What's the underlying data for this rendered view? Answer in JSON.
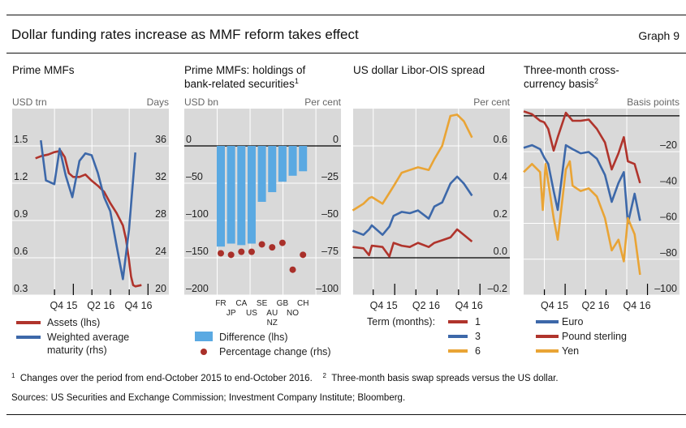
{
  "header": {
    "title": "Dollar funding rates increase as MMF reform takes effect",
    "graph_number": "Graph 9"
  },
  "footnotes": {
    "note1_mark": "1",
    "note1": "Changes over the period from end-October 2015 to end-October 2016.",
    "note2_mark": "2",
    "note2": "Three-month basis swap spreads versus the US dollar.",
    "sources": "Sources: US Securities and Exchange Commission; Investment Company Institute; Bloomberg."
  },
  "colors": {
    "red": "#b0342c",
    "blue": "#3d68a9",
    "yellow": "#e9a435",
    "bar": "#5aa9e2",
    "plot_bg": "#d9d9d9"
  },
  "chart_data": [
    {
      "type": "line",
      "title": "Prime MMFs",
      "ylabel_left": "USD trn",
      "ylabel_right": "Days",
      "xlim": [
        "2015-03-08",
        "2017-04-13"
      ],
      "ylim_left": [
        0.3,
        1.8
      ],
      "ylim_right": [
        20,
        40
      ],
      "yticks_left": [
        0.3,
        0.6,
        0.9,
        1.2,
        1.5
      ],
      "yticks_right": [
        20,
        24,
        28,
        32,
        36
      ],
      "yticks_left_labels": [
        "0.3",
        "0.6",
        "0.9",
        "1.2",
        "1.5"
      ],
      "yticks_right_labels": [
        "20",
        "24",
        "28",
        "32",
        "36"
      ],
      "xticklabels": [
        {
          "label": "Q4 15",
          "date": "2015-11-15"
        },
        {
          "label": "Q2 16",
          "date": "2016-05-15"
        },
        {
          "label": "Q4 16",
          "date": "2016-11-15"
        }
      ],
      "grid": true,
      "series": [
        {
          "name": "Assets (lhs)",
          "axis": "left",
          "color": "#b0342c",
          "dates": [
            "2015-06-30",
            "2015-07-31",
            "2015-08-31",
            "2015-09-30",
            "2015-10-31",
            "2015-11-20",
            "2015-12-10",
            "2015-12-31",
            "2016-01-31",
            "2016-02-29",
            "2016-03-31",
            "2016-04-30",
            "2016-05-31",
            "2016-06-30",
            "2016-07-31",
            "2016-08-31",
            "2016-09-15",
            "2016-09-30",
            "2016-10-10",
            "2016-10-20",
            "2016-10-31",
            "2016-11-30"
          ],
          "values": [
            1.4,
            1.42,
            1.43,
            1.45,
            1.46,
            1.41,
            1.28,
            1.25,
            1.25,
            1.27,
            1.22,
            1.18,
            1.13,
            1.04,
            0.96,
            0.86,
            0.75,
            0.58,
            0.45,
            0.38,
            0.37,
            0.38
          ]
        },
        {
          "name": "Weighted average maturity (rhs)",
          "name_lines": [
            "Weighted average",
            "maturity (rhs)"
          ],
          "axis": "right",
          "color": "#3d68a9",
          "dates": [
            "2015-07-26",
            "2015-08-20",
            "2015-09-30",
            "2015-10-26",
            "2015-11-25",
            "2015-12-27",
            "2016-01-31",
            "2016-02-29",
            "2016-03-31",
            "2016-04-30",
            "2016-05-31",
            "2016-06-30",
            "2016-07-31",
            "2016-08-31",
            "2016-09-30",
            "2016-10-31"
          ],
          "values": [
            36.6,
            32.3,
            31.9,
            35.7,
            32.8,
            30.5,
            34.4,
            35.2,
            35.0,
            33.1,
            30.5,
            29.0,
            25.3,
            21.7,
            27.0,
            35.3
          ]
        }
      ]
    },
    {
      "type": "bar",
      "title": "Prime MMFs: holdings of bank-related securities",
      "title_lines": [
        "Prime MMFs: holdings of",
        "bank-related securities"
      ],
      "title_note": "1",
      "ylabel_left": "USD bn",
      "ylabel_right": "Per cent",
      "ylim_left": [
        -200,
        50
      ],
      "ylim_right": [
        -100,
        25
      ],
      "yticks_left": [
        -200,
        -150,
        -100,
        -50,
        0
      ],
      "yticks_right": [
        -100,
        -75,
        -50,
        -25,
        0
      ],
      "yticks_left_labels": [
        "–200",
        "–150",
        "–100",
        "–50",
        "0"
      ],
      "yticks_right_labels": [
        "–100",
        "–75",
        "–50",
        "–25",
        "0"
      ],
      "categories": [
        "FR",
        "JP",
        "CA",
        "US",
        "SE",
        "AU NZ",
        "GB",
        "NO",
        "CH"
      ],
      "grid": true,
      "series": [
        {
          "name": "Difference (lhs)",
          "axis": "left",
          "kind": "bar",
          "color": "#5aa9e2",
          "values": [
            -135,
            -131,
            -133,
            -131,
            -75,
            -62,
            -48,
            -40,
            -34
          ]
        },
        {
          "name": "Percentage change (rhs)",
          "axis": "right",
          "kind": "dot",
          "color": "#a9302a",
          "values": [
            -72,
            -73,
            -71,
            -71,
            -66,
            -68,
            -65,
            -83,
            -73
          ]
        }
      ]
    },
    {
      "type": "line",
      "title": "US dollar Libor-OIS spread",
      "ylabel_right": "Per cent",
      "xlim": [
        "2015-07-07",
        "2017-05-09"
      ],
      "ylim_right": [
        -0.2,
        0.8
      ],
      "yticks_right": [
        -0.2,
        0.0,
        0.2,
        0.4,
        0.6
      ],
      "yticks_right_labels": [
        "–0.2",
        "0.0",
        "0.2",
        "0.4",
        "0.6"
      ],
      "xticklabels": [
        {
          "label": "Q4 15",
          "date": "2015-11-15"
        },
        {
          "label": "Q2 16",
          "date": "2016-05-15"
        },
        {
          "label": "Q4 16",
          "date": "2016-11-15"
        }
      ],
      "legend_title": "Term (months):",
      "grid": true,
      "dates": [
        "2015-07-05",
        "2015-08-20",
        "2015-09-13",
        "2015-09-25",
        "2015-11-10",
        "2015-12-09",
        "2015-12-27",
        "2016-01-31",
        "2016-03-06",
        "2016-04-10",
        "2016-05-26",
        "2016-06-19",
        "2016-07-23",
        "2016-08-27",
        "2016-09-25",
        "2016-10-24",
        "2016-11-28"
      ],
      "series": [
        {
          "name": "1",
          "axis": "right",
          "color": "#b0342c",
          "values": [
            0.058,
            0.051,
            0.014,
            0.065,
            0.058,
            0.007,
            0.08,
            0.065,
            0.058,
            0.08,
            0.058,
            0.08,
            0.094,
            0.109,
            0.152,
            0.123,
            0.087
          ]
        },
        {
          "name": "3",
          "axis": "right",
          "color": "#3d68a9",
          "values": [
            0.145,
            0.123,
            0.152,
            0.174,
            0.123,
            0.167,
            0.225,
            0.246,
            0.239,
            0.254,
            0.21,
            0.275,
            0.297,
            0.398,
            0.435,
            0.398,
            0.333
          ]
        },
        {
          "name": "6",
          "axis": "right",
          "color": "#e9a435",
          "values": [
            0.254,
            0.29,
            0.319,
            0.326,
            0.29,
            0.348,
            0.384,
            0.456,
            0.471,
            0.485,
            0.471,
            0.529,
            0.601,
            0.761,
            0.768,
            0.732,
            0.645
          ]
        }
      ]
    },
    {
      "type": "line",
      "title": "Three-month cross-currency basis",
      "title_lines": [
        "Three-month cross-",
        "currency basis"
      ],
      "title_note": "2",
      "ylabel_right": "Basis points",
      "xlim": [
        "2015-07-01",
        "2017-05-23"
      ],
      "ylim_right": [
        -100,
        4
      ],
      "yticks_right": [
        -100,
        -80,
        -60,
        -40,
        -20
      ],
      "yticks_right_labels": [
        "–100",
        "–80",
        "–60",
        "–40",
        "–20"
      ],
      "xticklabels": [
        {
          "label": "Q4 15",
          "date": "2015-11-15"
        },
        {
          "label": "Q2 16",
          "date": "2016-05-15"
        },
        {
          "label": "Q4 16",
          "date": "2016-11-15"
        }
      ],
      "grid": true,
      "series": [
        {
          "name": "Euro",
          "axis": "right",
          "color": "#3d68a9",
          "dates": [
            "2015-07-01",
            "2015-08-07",
            "2015-09-12",
            "2015-09-30",
            "2015-10-18",
            "2015-11-11",
            "2015-11-29",
            "2016-01-04",
            "2016-02-03",
            "2016-03-10",
            "2016-04-15",
            "2016-05-21",
            "2016-06-26",
            "2016-07-26",
            "2016-08-25",
            "2016-09-18",
            "2016-10-06",
            "2016-11-05",
            "2016-11-29"
          ],
          "values": [
            -17.9,
            -16.4,
            -18.6,
            -23.2,
            -26.9,
            -42.0,
            -52.5,
            -16.4,
            -18.6,
            -20.9,
            -20.2,
            -23.9,
            -33.0,
            -48.0,
            -37.5,
            -31.4,
            -60.1,
            -43.5,
            -58.6
          ]
        },
        {
          "name": "Pound sterling",
          "axis": "right",
          "color": "#b0342c",
          "dates": [
            "2015-07-01",
            "2015-08-07",
            "2015-09-12",
            "2015-09-30",
            "2015-10-18",
            "2015-11-11",
            "2015-11-29",
            "2016-01-04",
            "2016-02-03",
            "2016-03-10",
            "2016-04-15",
            "2016-05-21",
            "2016-06-26",
            "2016-07-26",
            "2016-08-25",
            "2016-09-18",
            "2016-10-06",
            "2016-11-05",
            "2016-11-29"
          ],
          "values": [
            2.5,
            0.9,
            -2.8,
            -3.6,
            -7.3,
            -19.4,
            -11.9,
            1.7,
            -2.8,
            -2.8,
            -2.1,
            -7.3,
            -14.9,
            -29.9,
            -20.9,
            -11.9,
            -25.4,
            -26.9,
            -37.5
          ]
        },
        {
          "name": "Yen",
          "axis": "right",
          "color": "#e9a435",
          "dates": [
            "2015-07-01",
            "2015-08-07",
            "2015-09-12",
            "2015-09-24",
            "2015-10-06",
            "2015-11-11",
            "2015-11-29",
            "2016-01-04",
            "2016-01-22",
            "2016-02-03",
            "2016-03-10",
            "2016-04-15",
            "2016-05-21",
            "2016-06-26",
            "2016-07-26",
            "2016-08-25",
            "2016-09-18",
            "2016-10-06",
            "2016-11-05",
            "2016-11-29"
          ],
          "values": [
            -31.4,
            -26.9,
            -31.4,
            -52.5,
            -26.9,
            -57.1,
            -69.1,
            -29.9,
            -25.4,
            -39.0,
            -42.0,
            -40.5,
            -45.0,
            -57.1,
            -75.1,
            -69.1,
            -81.2,
            -57.1,
            -66.1,
            -88.7
          ]
        }
      ]
    }
  ]
}
